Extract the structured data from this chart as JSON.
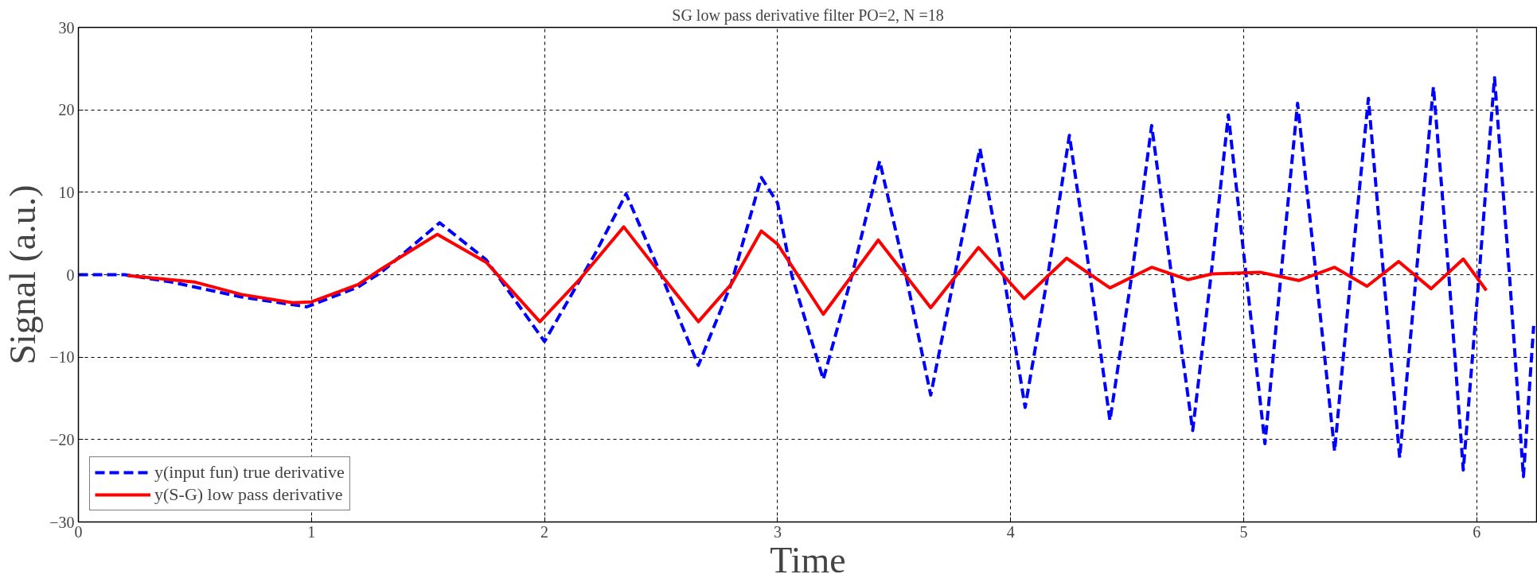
{
  "chart_data": {
    "type": "line",
    "title": "SG low pass derivative filter PO=2, N =18",
    "xlabel": "Time",
    "ylabel": "Signal (a.u.)",
    "xlim": [
      0,
      6.26
    ],
    "ylim": [
      -30,
      30
    ],
    "xticks": [
      0,
      1,
      2,
      3,
      4,
      5,
      6
    ],
    "yticks": [
      -30,
      -20,
      -10,
      0,
      10,
      20,
      30
    ],
    "grid": true,
    "legend": "bottom left",
    "series": [
      {
        "name": "y(input fun) true derivative",
        "color": "#0000ff",
        "line_style": "dashed",
        "x": [
          0,
          0.2,
          0.4,
          0.7,
          0.98,
          1.2,
          1.3,
          1.55,
          1.75,
          2.0,
          2.22,
          2.35,
          2.5,
          2.66,
          2.8,
          2.93,
          3.0,
          3.06,
          3.196,
          3.32,
          3.438,
          3.55,
          3.657,
          3.76,
          3.868,
          3.97,
          4.062,
          4.16,
          4.252,
          4.34,
          4.426,
          4.52,
          4.605,
          4.69,
          4.781,
          4.86,
          4.934,
          5.01,
          5.091,
          5.16,
          5.231,
          5.31,
          5.39,
          5.46,
          5.535,
          5.6,
          5.669,
          5.74,
          5.814,
          5.88,
          5.942,
          6.01,
          6.076,
          6.14,
          6.2,
          6.244
        ],
        "values": [
          0,
          0,
          -0.9,
          -2.7,
          -3.9,
          -1.5,
          0.3,
          6.3,
          1.8,
          -8.1,
          2.7,
          9.8,
          0,
          -11.0,
          -1.2,
          11.8,
          8.7,
          0,
          -12.7,
          0,
          13.8,
          0,
          -14.6,
          0,
          15.3,
          0,
          -16.1,
          0,
          16.9,
          0,
          -17.7,
          0,
          18.1,
          0,
          -18.9,
          0,
          19.4,
          0,
          -20.5,
          0,
          20.8,
          0,
          -21.4,
          0,
          21.4,
          0,
          -22.2,
          0,
          22.8,
          0,
          -23.7,
          0,
          23.9,
          0,
          -24.5,
          -6.2
        ]
      },
      {
        "name": "y(S-G) low pass derivative",
        "color": "#ff0000",
        "line_style": "solid",
        "x": [
          0.21,
          0.5,
          0.7,
          0.92,
          1.0,
          1.2,
          1.3,
          1.54,
          1.75,
          1.98,
          2.15,
          2.34,
          2.5,
          2.66,
          2.8,
          2.93,
          3.0,
          3.196,
          3.432,
          3.657,
          3.862,
          4.058,
          4.24,
          4.426,
          4.605,
          4.76,
          4.864,
          5.07,
          5.236,
          5.39,
          5.529,
          5.665,
          5.804,
          5.942,
          6.041
        ],
        "values": [
          -0.1,
          -0.9,
          -2.4,
          -3.4,
          -3.3,
          -1.2,
          0.7,
          4.9,
          1.5,
          -5.7,
          -0.6,
          5.8,
          0,
          -5.7,
          -1.2,
          5.3,
          3.7,
          -4.8,
          4.2,
          -4.0,
          3.3,
          -2.9,
          2.0,
          -1.6,
          0.9,
          -0.6,
          0.1,
          0.3,
          -0.7,
          0.9,
          -1.4,
          1.6,
          -1.7,
          1.9,
          -1.9
        ]
      }
    ]
  }
}
